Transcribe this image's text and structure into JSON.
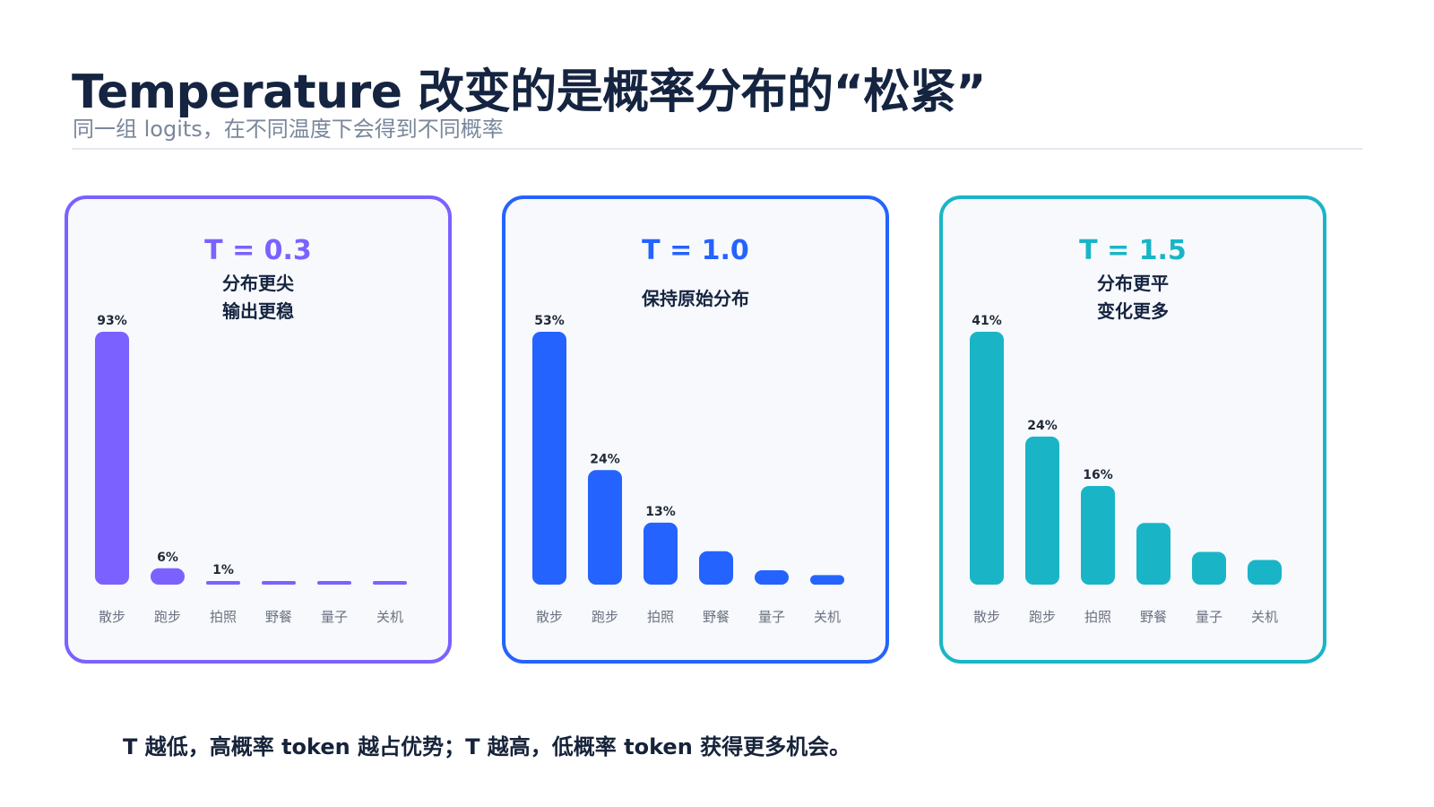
{
  "title": "Temperature 改变的是概率分布的“松紧”",
  "subtitle": "同一组 logits，在不同温度下会得到不同概率",
  "footer": "T 越低，高概率 token 越占优势；T 越高，低概率 token 获得更多机会。",
  "colors": {
    "panel_1": "#7b61ff",
    "panel_2": "#2563ff",
    "panel_3": "#19b5c7",
    "title_text": "#152440",
    "subtitle_text": "#7a879b",
    "tick_text": "#6b7280",
    "value_text": "#1f2937",
    "panel_bg": "#f7f9fc"
  },
  "chart_data": [
    {
      "type": "bar",
      "title": "T = 0.3",
      "subtitle": [
        "分布更尖",
        "输出更稳"
      ],
      "categories": [
        "散步",
        "跑步",
        "拍照",
        "野餐",
        "量子",
        "关机"
      ],
      "values": [
        93,
        6,
        1,
        0.2,
        0.1,
        0.1
      ],
      "data_labels": [
        "93%",
        "6%",
        "1%",
        "",
        "",
        ""
      ],
      "color": "#7b61ff",
      "ylim": [
        0,
        93
      ]
    },
    {
      "type": "bar",
      "title": "T = 1.0",
      "subtitle": [
        "保持原始分布"
      ],
      "categories": [
        "散步",
        "跑步",
        "拍照",
        "野餐",
        "量子",
        "关机"
      ],
      "values": [
        53,
        24,
        13,
        7,
        3,
        2
      ],
      "data_labels": [
        "53%",
        "24%",
        "13%",
        "",
        "",
        ""
      ],
      "color": "#2563ff",
      "ylim": [
        0,
        53
      ]
    },
    {
      "type": "bar",
      "title": "T = 1.5",
      "subtitle": [
        "分布更平",
        "变化更多"
      ],
      "categories": [
        "散步",
        "跑步",
        "拍照",
        "野餐",
        "量子",
        "关机"
      ],
      "values": [
        41,
        24,
        16,
        10,
        5.3,
        4
      ],
      "data_labels": [
        "41%",
        "24%",
        "16%",
        "",
        "",
        ""
      ],
      "color": "#19b5c7",
      "ylim": [
        0,
        41
      ]
    }
  ]
}
